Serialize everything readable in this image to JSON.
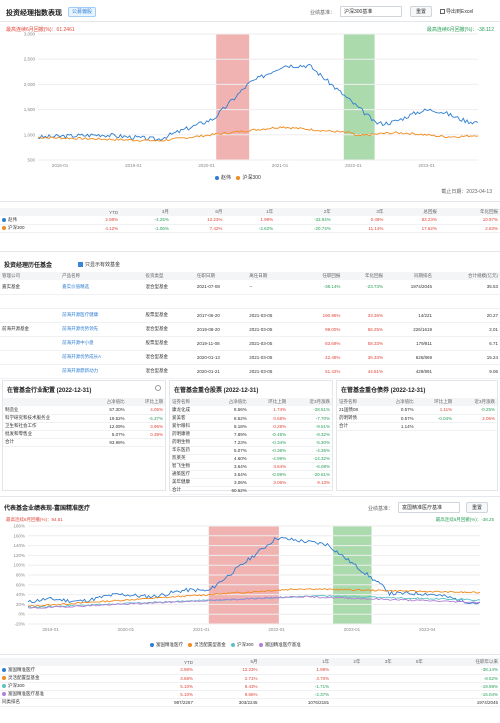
{
  "header": {
    "title": "投资经理指数表现",
    "tag": "公募偏股",
    "benchmark_label": "业绩基准：",
    "benchmark_value": "沪深300基准",
    "reset": "重置",
    "export": "导出到Excel"
  },
  "chart1": {
    "max_dd_left": "最高连续6月回撤(%)：61.2461",
    "max_dd_right": "最高连续6月回撤(%)：-38.112",
    "y_ticks": [
      "3,000",
      "2,500",
      "2,000",
      "1,500",
      "1,000",
      "500"
    ],
    "x_ticks": [
      "2018-01",
      "2019-01",
      "2020-01",
      "2021-01",
      "2022-01",
      "2023-01"
    ],
    "legend": [
      "赵伟",
      "沪深300"
    ],
    "deadline": "截止日期：2023-04-13"
  },
  "colors": {
    "series_a": "#2e7dd1",
    "series_b": "#f28a1c",
    "shade_red": "#e57373",
    "shade_green": "#66bb6a",
    "accent": "#3a86d6",
    "up": "#e2463a",
    "down": "#2aa05a"
  },
  "perf": {
    "columns": [
      "",
      "YTD",
      "3月",
      "6月",
      "1年",
      "2年",
      "3年",
      "总回报",
      "年化回报"
    ],
    "rows": [
      {
        "name": "赵伟",
        "values": [
          "2.98%",
          "-4.25%",
          "12.23%",
          "1.99%",
          "-33.94%",
          "0.49%",
          "83.23%",
          "10.97%"
        ]
      },
      {
        "name": "沪深300",
        "values": [
          "4.12%",
          "-1.06%",
          "7.42%",
          "-2.62%",
          "-20.74%",
          "11.14%",
          "17.62%",
          "2.83%"
        ]
      }
    ]
  },
  "history": {
    "title": "投资经理历任基金",
    "filter": "只显示有效基金",
    "columns": [
      "管理公司",
      "产品名称",
      "投资类型",
      "任职日期",
      "离任日期",
      "任职回报",
      "年化回报",
      "同期排名",
      "合计规模(亿元)"
    ],
    "rows": [
      [
        "嘉实基金",
        "嘉实价值精选",
        "混合型基金",
        "2021-07-08",
        "--",
        "-38.14%",
        "-23.73%",
        "1974/2045",
        "35.53"
      ],
      [
        "",
        "",
        "",
        "",
        "",
        "",
        "",
        "",
        ""
      ],
      [
        "",
        "前海开源医疗健康",
        "股票型基金",
        "2017-06-20",
        "2021-03-05",
        "190.96%",
        "33.36%",
        "14/221",
        "20.27"
      ],
      [
        "前海开源基金",
        "前海开源优势领先",
        "混合型基金",
        "2019-08-20",
        "2021-03-05",
        "99.00%",
        "56.25%",
        "226/1619",
        "2.01"
      ],
      [
        "",
        "前海开源中小盘",
        "股票型基金",
        "2019-11-08",
        "2021-03-05",
        "83.69%",
        "58.33%",
        "179/811",
        "6.71"
      ],
      [
        "",
        "前海开源优势成长A",
        "混合型基金",
        "2020-01-13",
        "2021-03-05",
        "42.49%",
        "36.33%",
        "626/869",
        "15.24"
      ],
      [
        "",
        "前海开源鼎新动力",
        "混合型基金",
        "2020-01-21",
        "2021-03-05",
        "51.42%",
        "44.81%",
        "429/891",
        "9.06"
      ]
    ]
  },
  "industry": {
    "title": "在管基金行业配置 (2022-12-31)",
    "columns": [
      "",
      "占净值比",
      "环比上期"
    ],
    "rows": [
      [
        "制造业",
        "57.30%",
        "4.05%"
      ],
      [
        "科学研究和技术服务业",
        "19.52%",
        "-5.37%"
      ],
      [
        "卫生和社会工作",
        "12.09%",
        "3.96%"
      ],
      [
        "批发和零售业",
        "5.07%",
        "0.39%"
      ],
      [
        "合计",
        "93.98%",
        ""
      ]
    ]
  },
  "stocks": {
    "title": "在管基金重仓股票 (2022-12-31)",
    "columns": [
      "证券名称",
      "占净值比",
      "环比上期",
      "近3月涨跌"
    ],
    "rows": [
      [
        "康龙化成",
        "8.56%",
        "1.74%",
        "-28.61%"
      ],
      [
        "爱美客",
        "8.52%",
        "0.58%",
        "-7.70%"
      ],
      [
        "爱尔眼科",
        "8.18%",
        "0.28%",
        "-9.51%"
      ],
      [
        "药明康德",
        "7.89%",
        "-0.45%",
        "-8.32%"
      ],
      [
        "药明生物",
        "7.23%",
        "-0.34%",
        "-5.30%"
      ],
      [
        "华东医药",
        "5.07%",
        "-0.38%",
        "-4.35%"
      ],
      [
        "凯莱英",
        "4.60%",
        "-4.99%",
        "-14.32%"
      ],
      [
        "智飞生物",
        "3.64%",
        "3.64%",
        "-6.08%"
      ],
      [
        "通策医疗",
        "3.54%",
        "-0.89%",
        "-20.61%"
      ],
      [
        "美年健康",
        "3.06%",
        "3.06%",
        "9.13%"
      ],
      [
        "合计",
        "60.62%",
        "",
        ""
      ]
    ]
  },
  "bonds": {
    "title": "在管基金重仓债券 (2022-12-31)",
    "columns": [
      "证券名称",
      "占净值比",
      "环比上期",
      "近3月涨跌"
    ],
    "rows": [
      [
        "21国债08",
        "0.57%",
        "1.11%",
        "-0.25%"
      ],
      [
        "药明转债",
        "0.57%",
        "-0.04%",
        "2.06%"
      ],
      [
        "合计",
        "1.14%",
        "",
        ""
      ]
    ]
  },
  "fund_chart": {
    "title": "代表基金业绩表现-富国精准医疗",
    "benchmark_label": "业绩基准：",
    "benchmark_value": "富国精准医疗基准",
    "reset": "重置",
    "max_dd_left": "最高连续6月回撤(%)：84.51",
    "max_dd_right": "最高连续6月回撤(%)：-38.25",
    "y_ticks": [
      "180%",
      "160%",
      "140%",
      "120%",
      "100%",
      "80%",
      "60%",
      "40%",
      "20%",
      "0%",
      "-20%"
    ],
    "x_ticks": [
      "2019-01",
      "2020-01",
      "2021-01",
      "2022-01",
      "2023-01",
      "2023-04"
    ],
    "legend": [
      "富国精准医疗",
      "灵活配置型基金",
      "沪深300",
      "富国精准医疗基准"
    ]
  },
  "fund_perf": {
    "columns": [
      "",
      "YTD",
      "6月",
      "1年",
      "2年",
      "3年",
      "5年",
      "任职年以来"
    ],
    "rows": [
      {
        "name": "富国精准医疗",
        "values": [
          "2.98%",
          "12.23%",
          "1.99%",
          "",
          "",
          "",
          "-38.14%"
        ]
      },
      {
        "name": "灵活配置型基金",
        "values": [
          "3.68%",
          "2.71%",
          "3.70%",
          "",
          "",
          "",
          "-8.52%"
        ]
      },
      {
        "name": "沪深300",
        "values": [
          "5.10%",
          "8.43%",
          "-1.71%",
          "",
          "",
          "",
          "-19.98%"
        ]
      },
      {
        "name": "富国精准医疗基准",
        "values": [
          "5.10%",
          "9.66%",
          "-2.37%",
          "",
          "",
          "",
          "-15.04%"
        ]
      },
      {
        "name": "同类排名",
        "values": [
          "987/2267",
          "303/2245",
          "1076/2181",
          "",
          "",
          "",
          "1974/2045"
        ]
      }
    ]
  }
}
